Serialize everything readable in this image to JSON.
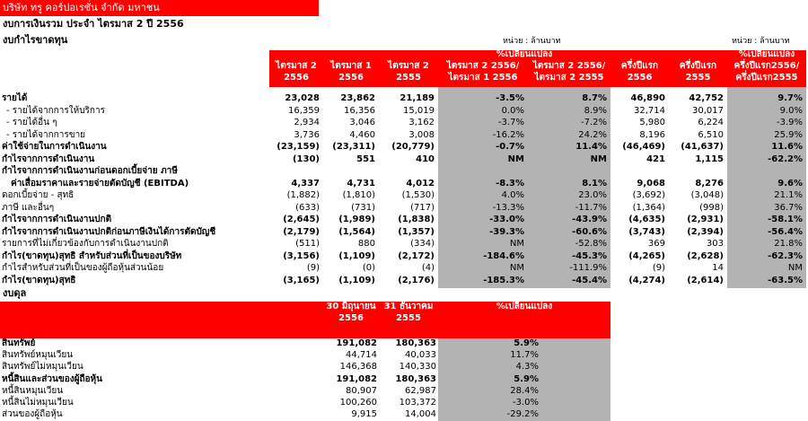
{
  "header": {
    "company": "บริษัท ทรู คอร์ปอเรชั่น จำกัด มหาชน",
    "title": "งบการเงินรวม ประจำ ไตรมาส 2 ปี 2556"
  },
  "income": {
    "title": "งบกำไรขาดทุน",
    "units": [
      "หน่วย : ล้านบาท",
      "หน่วย : ล้านบาท"
    ],
    "group_header": "%เปลี่ยนแปลง",
    "columns": [
      [
        "ไตรมาส 2",
        "2556"
      ],
      [
        "ไตรมาส 1",
        "2556"
      ],
      [
        "ไตรมาส 2",
        "2555"
      ],
      [
        "ไตรมาส 2 2556/",
        "ไตรมาส 1 2556"
      ],
      [
        "ไตรมาส 2 2556/",
        "ไตรมาส 2 2555"
      ],
      [
        "ครึ่งปีแรก",
        "2556"
      ],
      [
        "ครึ่งปีแรก",
        "2555"
      ],
      [
        "%เปลี่ยนแปลง",
        "ครึ่งปีแรก2556/",
        "ครึ่งปีแรก2555"
      ]
    ],
    "rows": [
      {
        "label": "รายได้",
        "bold": true,
        "values": [
          "23,028",
          "23,862",
          "21,189",
          "-3.5%",
          "8.7%",
          "46,890",
          "42,752",
          "9.7%"
        ]
      },
      {
        "label": "- รายได้จากการให้บริการ",
        "indent": 1,
        "values": [
          "16,359",
          "16,356",
          "15,019",
          "0.0%",
          "8.9%",
          "32,714",
          "30,017",
          "9.0%"
        ]
      },
      {
        "label": "- รายได้อื่น ๆ",
        "indent": 1,
        "values": [
          "2,934",
          "3,046",
          "3,162",
          "-3.7%",
          "-7.2%",
          "5,980",
          "6,224",
          "-3.9%"
        ]
      },
      {
        "label": "- รายได้จากการขาย",
        "indent": 1,
        "values": [
          "3,736",
          "4,460",
          "3,008",
          "-16.2%",
          "24.2%",
          "8,196",
          "6,510",
          "25.9%"
        ]
      },
      {
        "label": "ค่าใช้จ่ายในการดำเนินงาน",
        "bold": true,
        "values": [
          "(23,159)",
          "(23,311)",
          "(20,779)",
          "-0.7%",
          "11.4%",
          "(46,469)",
          "(41,637)",
          "11.6%"
        ]
      },
      {
        "label": "กำไรจากการดำเนินงาน",
        "bold": true,
        "values": [
          "(130)",
          "551",
          "410",
          "NM",
          "NM",
          "421",
          "1,115",
          "-62.2%"
        ]
      },
      {
        "label": "กำไรจากการดำเนินงานก่อนดอกเบี้ยจ่าย ภาษี",
        "bold": true
      },
      {
        "label": "ค่าเสื่อมราคาและรายจ่ายตัดบัญชี (EBITDA)",
        "bold": true,
        "indent": 2,
        "values": [
          "4,337",
          "4,731",
          "4,012",
          "-8.3%",
          "8.1%",
          "9,068",
          "8,276",
          "9.6%"
        ]
      },
      {
        "label": "ดอกเบี้ยจ่าย - สุทธิ",
        "values": [
          "(1,882)",
          "(1,810)",
          "(1,530)",
          "4.0%",
          "23.0%",
          "(3,692)",
          "(3,048)",
          "21.1%"
        ]
      },
      {
        "label": "ภาษี และอื่นๆ",
        "values": [
          "(633)",
          "(731)",
          "(717)",
          "-13.3%",
          "-11.7%",
          "(1,364)",
          "(998)",
          "36.7%"
        ]
      },
      {
        "label": "กำไรจากการดำเนินงานปกติ",
        "bold": true,
        "values": [
          "(2,645)",
          "(1,989)",
          "(1,838)",
          "-33.0%",
          "-43.9%",
          "(4,635)",
          "(2,931)",
          "-58.1%"
        ]
      },
      {
        "label": "กำไรจากการดำเนินงานปกติก่อนภาษีเงินได้การตัดบัญชี",
        "bold": true,
        "values": [
          "(2,179)",
          "(1,564)",
          "(1,357)",
          "-39.3%",
          "-60.6%",
          "(3,743)",
          "(2,394)",
          "-56.4%"
        ]
      },
      {
        "label": "รายการที่ไม่เกี่ยวข้องกับการดำเนินงานปกติ",
        "values": [
          "(511)",
          "880",
          "(334)",
          "NM",
          "-52.8%",
          "369",
          "303",
          "21.8%"
        ]
      },
      {
        "label": "กำไร(ขาดทุน)สุทธิ สำหรับส่วนที่เป็นของบริษัท",
        "bold": true,
        "values": [
          "(3,156)",
          "(1,109)",
          "(2,172)",
          "-184.6%",
          "-45.3%",
          "(4,265)",
          "(2,628)",
          "-62.3%"
        ]
      },
      {
        "label": "กำไรสำหรับส่วนที่เป็นของผู้ถือหุ้นส่วนน้อย",
        "values": [
          "(9)",
          "(0)",
          "(4)",
          "NM",
          "-111.9%",
          "(9)",
          "14",
          "NM"
        ]
      },
      {
        "label": "กำไร(ขาดทุน)สุทธิ",
        "bold": true,
        "values": [
          "(3,165)",
          "(1,109)",
          "(2,176)",
          "-185.3%",
          "-45.4%",
          "(4,274)",
          "(2,614)",
          "-63.5%"
        ]
      }
    ]
  },
  "balance": {
    "title": "งบดุล",
    "columns": [
      [
        "30 มิถุนายน",
        "2556"
      ],
      [
        "31 ธันวาคม",
        "2555"
      ],
      [
        "%เปลี่ยนแปลง"
      ]
    ],
    "rows": [
      {
        "label": "สินทรัพย์",
        "bold": true,
        "values": [
          "191,082",
          "180,363",
          "5.9%"
        ]
      },
      {
        "label": "สินทรัพย์หมุนเวียน",
        "values": [
          "44,714",
          "40,033",
          "11.7%"
        ]
      },
      {
        "label": "สินทรัพย์ไม่หมุนเวียน",
        "values": [
          "146,368",
          "140,330",
          "4.3%"
        ]
      },
      {
        "label": "หนี้สินและส่วนของผู้ถือหุ้น",
        "bold": true,
        "values": [
          "191,082",
          "180,363",
          "5.9%"
        ]
      },
      {
        "label": "หนี้สินหมุนเวียน",
        "values": [
          "80,907",
          "62,987",
          "28.4%"
        ]
      },
      {
        "label": "หนี้สินไม่หมุนเวียน",
        "values": [
          "100,260",
          "103,372",
          "-3.0%"
        ]
      },
      {
        "label": "ส่วนของผู้ถือหุ้น",
        "values": [
          "9,915",
          "14,004",
          "-29.2%"
        ]
      }
    ]
  }
}
